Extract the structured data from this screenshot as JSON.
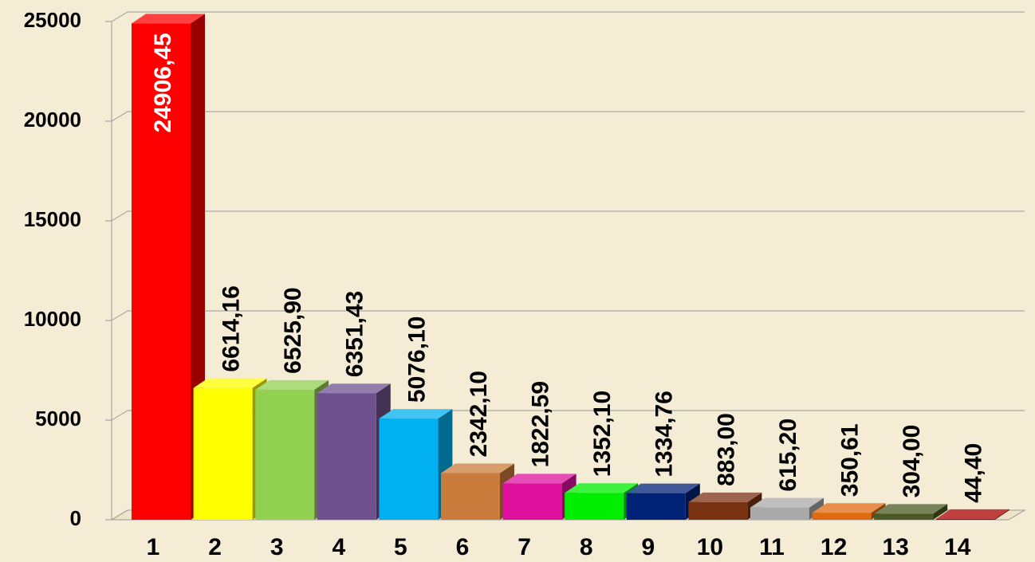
{
  "chart_data": {
    "type": "bar3d",
    "categories": [
      "1",
      "2",
      "3",
      "4",
      "5",
      "6",
      "7",
      "8",
      "9",
      "10",
      "11",
      "12",
      "13",
      "14"
    ],
    "values": [
      24906.45,
      6614.16,
      6525.9,
      6351.43,
      5076.1,
      2342.1,
      1822.59,
      1352.1,
      1334.76,
      883.0,
      615.2,
      350.61,
      304.0,
      44.4
    ],
    "value_labels": [
      "24906,45",
      "6614,16",
      "6525,90",
      "6351,43",
      "5076,10",
      "2342,10",
      "1822,59",
      "1352,10",
      "1334,76",
      "883,00",
      "615,20",
      "350,61",
      "304,00",
      "44,40"
    ],
    "colors": [
      "#ff0000",
      "#ffff00",
      "#92d050",
      "#6f5190",
      "#00b0f0",
      "#c97c3c",
      "#e0109f",
      "#00ee00",
      "#002277",
      "#7a3312",
      "#a9a9a9",
      "#e06a10",
      "#4a5a22",
      "#a80000"
    ],
    "ylim": [
      0,
      25000
    ],
    "yticks": [
      0,
      5000,
      10000,
      15000,
      20000,
      25000
    ],
    "grid": true
  }
}
